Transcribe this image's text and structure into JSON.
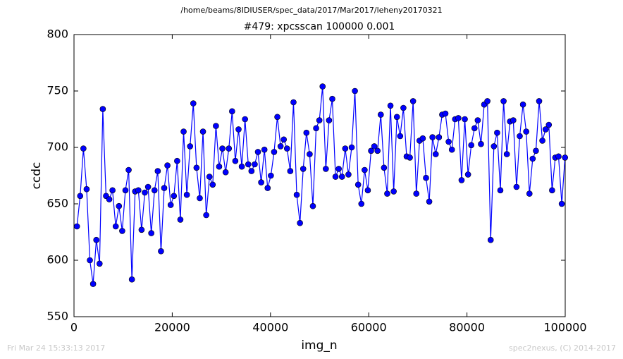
{
  "chart_data": {
    "type": "line",
    "title": "/home/beams/8IDIUSER/spec_data/2017/Mar2017/leheny20170321",
    "subtitle": "#479: xpcsscan 100000 0.001",
    "x_label": "img_n",
    "y_label": "ccdc",
    "annotations": [
      "Fri Mar 24 15:33:13 2017",
      "spec2nexus, (C) 2014-2017"
    ],
    "xlim": [
      0,
      100000
    ],
    "ylim": [
      550,
      800
    ],
    "xticks": [
      0,
      20000,
      40000,
      60000,
      80000,
      100000
    ],
    "yticks": [
      550,
      600,
      650,
      700,
      750,
      800
    ],
    "x": [
      600,
      1258,
      1916,
      2574,
      3232,
      3890,
      4548,
      5206,
      5864,
      6522,
      7180,
      7838,
      8496,
      9154,
      9812,
      10470,
      11128,
      11786,
      12444,
      13102,
      13760,
      14418,
      15076,
      15734,
      16392,
      17050,
      17708,
      18366,
      19024,
      19682,
      20340,
      20998,
      21656,
      22314,
      22972,
      23630,
      24288,
      24946,
      25604,
      26262,
      26920,
      27578,
      28236,
      28894,
      29552,
      30210,
      30868,
      31526,
      32184,
      32842,
      33500,
      34158,
      34816,
      35474,
      36132,
      36790,
      37448,
      38106,
      38764,
      39422,
      40080,
      40738,
      41396,
      42054,
      42712,
      43370,
      44028,
      44686,
      45344,
      46002,
      46660,
      47318,
      47976,
      48634,
      49292,
      49950,
      50608,
      51266,
      51924,
      52582,
      53240,
      53898,
      54556,
      55214,
      55872,
      56530,
      57188,
      57846,
      58504,
      59162,
      59820,
      60478,
      61136,
      61794,
      62452,
      63110,
      63768,
      64426,
      65084,
      65742,
      66400,
      67058,
      67716,
      68374,
      69032,
      69690,
      70348,
      71006,
      71664,
      72322,
      72980,
      73638,
      74296,
      74954,
      75612,
      76270,
      76928,
      77586,
      78244,
      78902,
      79560,
      80218,
      80876,
      81534,
      82192,
      82850,
      83508,
      84166,
      84824,
      85482,
      86140,
      86798,
      87456,
      88114,
      88772,
      89430,
      90088,
      90746,
      91404,
      92062,
      92720,
      93378,
      94036,
      94694,
      95352,
      96010,
      96668,
      97326,
      97984,
      98642,
      99300,
      99958
    ],
    "series": [
      {
        "name": "ccdc",
        "color": "#0000ff",
        "values": [
          630,
          657,
          699,
          663,
          600,
          579,
          618,
          597,
          734,
          657,
          654,
          662,
          630,
          648,
          626,
          662,
          680,
          583,
          661,
          662,
          627,
          660,
          665,
          624,
          662,
          679,
          608,
          664,
          684,
          649,
          657,
          688,
          636,
          714,
          658,
          701,
          739,
          682,
          655,
          714,
          640,
          674,
          667,
          719,
          683,
          699,
          678,
          699,
          732,
          688,
          716,
          683,
          725,
          685,
          679,
          685,
          696,
          669,
          698,
          664,
          675,
          696,
          727,
          701,
          707,
          699,
          679,
          740,
          658,
          633,
          681,
          713,
          694,
          648,
          717,
          724,
          754,
          681,
          724,
          743,
          674,
          681,
          674,
          699,
          676,
          700,
          750,
          667,
          650,
          680,
          662,
          697,
          701,
          697,
          729,
          682,
          659,
          737,
          661,
          727,
          710,
          735,
          692,
          691,
          741,
          659,
          706,
          708,
          673,
          652,
          709,
          694,
          709,
          729,
          730,
          705,
          698,
          725,
          726,
          671,
          725,
          676,
          702,
          717,
          724,
          703,
          738,
          741,
          618,
          701,
          713,
          662,
          741,
          694,
          723,
          724,
          665,
          710,
          738,
          714,
          659,
          690,
          697,
          741,
          706,
          716,
          720,
          662,
          691,
          692,
          650,
          691
        ]
      }
    ]
  }
}
